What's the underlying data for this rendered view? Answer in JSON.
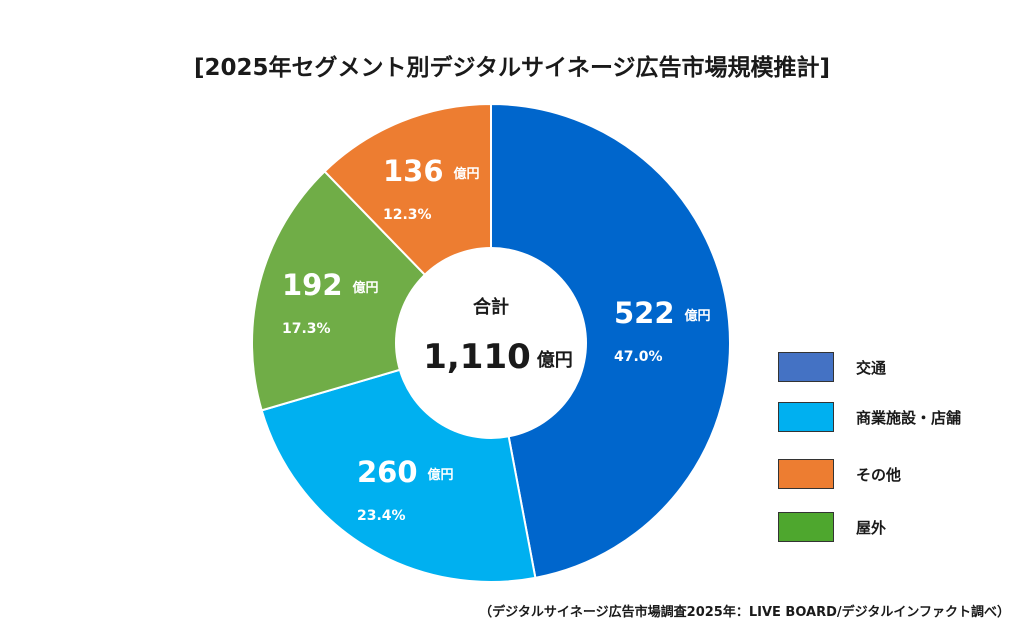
{
  "chart_data": {
    "type": "pie",
    "title": "[2025年セグメント別デジタルサイネージ広告市場規模推計]",
    "donut": true,
    "start_angle": "12 o'clock, clockwise",
    "unit": "億円",
    "slices": [
      {
        "name": "交通",
        "value": 522,
        "percent": "47.0%",
        "color": "#0066CC",
        "legend_color": "#4472C4"
      },
      {
        "name": "商業施設・店舗",
        "value": 260,
        "percent": "23.4%",
        "color": "#00B0F0",
        "legend_color": "#00B0F0"
      },
      {
        "name": "屋外",
        "value": 192,
        "percent": "17.3%",
        "color": "#70AD47",
        "legend_color": "#4EA72E"
      },
      {
        "name": "その他",
        "value": 136,
        "percent": "12.3%",
        "color": "#ED7D31",
        "legend_color": "#ED7D31"
      }
    ],
    "center": {
      "label": "合計",
      "total": "1,110",
      "unit": "億円"
    },
    "legend": {
      "placement": "right",
      "order": [
        "交通",
        "商業施設・店舗",
        "その他",
        "屋外"
      ]
    },
    "source": "（デジタルサイネージ広告市場調査2025年：LIVE BOARD/デジタルインファクト調べ）"
  }
}
